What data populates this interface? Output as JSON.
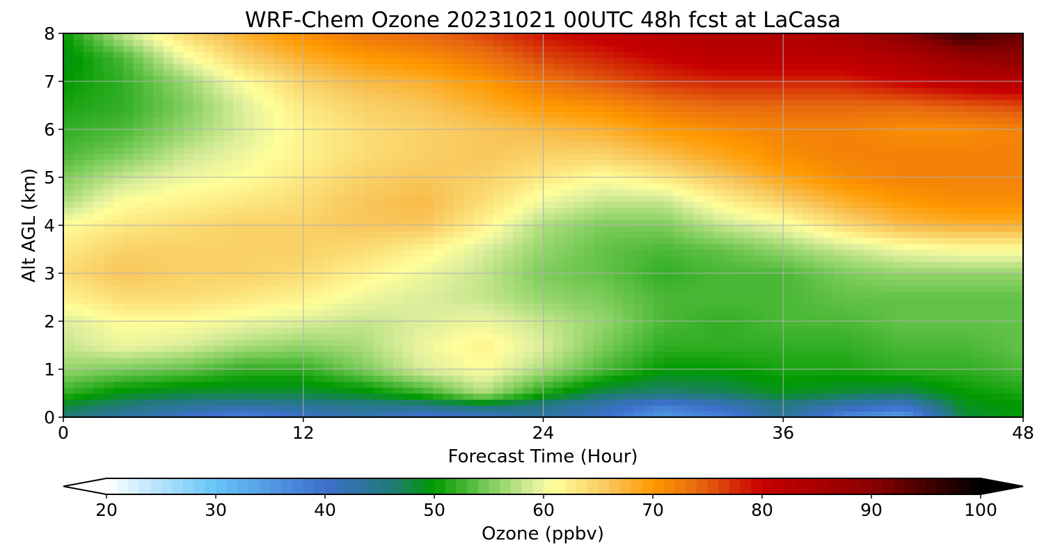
{
  "chart_data": {
    "type": "heatmap",
    "title": "WRF-Chem Ozone  20231021 00UTC 48h fcst at LaCasa",
    "xlabel": "Forecast Time (Hour)",
    "ylabel": "Alt AGL (km)",
    "xlim": [
      0,
      48
    ],
    "ylim": [
      0,
      8
    ],
    "xticks": [
      "0",
      "12",
      "24",
      "36",
      "48"
    ],
    "yticks": [
      "0",
      "1",
      "2",
      "3",
      "4",
      "5",
      "6",
      "7",
      "8"
    ],
    "grid": true,
    "x": [
      0,
      3,
      6,
      9,
      12,
      15,
      18,
      21,
      24,
      27,
      30,
      33,
      36,
      39,
      42,
      45,
      48
    ],
    "y": [
      0,
      0.25,
      0.5,
      1,
      1.5,
      2,
      2.5,
      3,
      3.5,
      4,
      4.5,
      5,
      5.5,
      6,
      6.5,
      7,
      7.5,
      8
    ],
    "z": [
      [
        46,
        43,
        40,
        37,
        40,
        42,
        39,
        40,
        43,
        40,
        35,
        38,
        44,
        37,
        34,
        48,
        50
      ],
      [
        48,
        46,
        44,
        43,
        44,
        45,
        45,
        47,
        45,
        42,
        38,
        41,
        45,
        42,
        40,
        49,
        50
      ],
      [
        52,
        49,
        48,
        48,
        48,
        49,
        52,
        57,
        51,
        47,
        46,
        47,
        49,
        48,
        47,
        50,
        51
      ],
      [
        56,
        55,
        54,
        52,
        52,
        55,
        59,
        61,
        57,
        53,
        50,
        50,
        51,
        51,
        52,
        52,
        53
      ],
      [
        58,
        60,
        59,
        57,
        56,
        57,
        60,
        62,
        59,
        55,
        52,
        52,
        52,
        52,
        53,
        53,
        54
      ],
      [
        59,
        61,
        61,
        60,
        59,
        58,
        59,
        60,
        58,
        56,
        53,
        52,
        53,
        53,
        54,
        54,
        54
      ],
      [
        62,
        64,
        64,
        63,
        62,
        60,
        59,
        58,
        56,
        55,
        53,
        53,
        53,
        54,
        54,
        54,
        54
      ],
      [
        64,
        66,
        65,
        65,
        64,
        62,
        60,
        58,
        55,
        54,
        52,
        53,
        53,
        55,
        56,
        56,
        56
      ],
      [
        63,
        65,
        65,
        65,
        65,
        64,
        62,
        59,
        56,
        54,
        53,
        54,
        56,
        58,
        60,
        61,
        61
      ],
      [
        61,
        63,
        64,
        65,
        65,
        66,
        66,
        62,
        57,
        55,
        55,
        58,
        60,
        64,
        67,
        68,
        68
      ],
      [
        57,
        61,
        62,
        63,
        64,
        66,
        67,
        64,
        60,
        58,
        58,
        62,
        65,
        68,
        70,
        71,
        71
      ],
      [
        55,
        58,
        60,
        61,
        63,
        65,
        66,
        65,
        63,
        61,
        63,
        66,
        69,
        71,
        72,
        72,
        72
      ],
      [
        53,
        55,
        58,
        60,
        62,
        64,
        65,
        66,
        65,
        65,
        67,
        69,
        71,
        72,
        72,
        72,
        72
      ],
      [
        52,
        53,
        56,
        59,
        62,
        64,
        65,
        66,
        67,
        68,
        70,
        71,
        72,
        72,
        71,
        71,
        72
      ],
      [
        51,
        52,
        55,
        59,
        63,
        65,
        66,
        68,
        70,
        71,
        73,
        74,
        74,
        74,
        74,
        75,
        76
      ],
      [
        50,
        52,
        56,
        61,
        65,
        67,
        68,
        70,
        73,
        75,
        77,
        78,
        78,
        78,
        80,
        82,
        83
      ],
      [
        49,
        53,
        60,
        65,
        68,
        70,
        71,
        73,
        76,
        78,
        80,
        82,
        82,
        82,
        84,
        88,
        90
      ],
      [
        50,
        58,
        64,
        68,
        71,
        73,
        74,
        76,
        79,
        81,
        83,
        84,
        84,
        85,
        90,
        96,
        92
      ]
    ],
    "colorbar": {
      "label": "Ozone  (ppbv)",
      "min": 20,
      "max": 100,
      "ticks": [
        "20",
        "30",
        "40",
        "50",
        "60",
        "70",
        "80",
        "90",
        "100"
      ],
      "extend": "both",
      "under_color": "#ffffff",
      "over_color": "#000000",
      "colors": [
        {
          "v": 20,
          "c": "#ffffff"
        },
        {
          "v": 30,
          "c": "#66c4f7"
        },
        {
          "v": 40,
          "c": "#3d6fcc"
        },
        {
          "v": 46,
          "c": "#217a7a"
        },
        {
          "v": 50,
          "c": "#009a00"
        },
        {
          "v": 55,
          "c": "#7ccc5a"
        },
        {
          "v": 59,
          "c": "#dcee9c"
        },
        {
          "v": 61,
          "c": "#fffe9a"
        },
        {
          "v": 66,
          "c": "#f8c65a"
        },
        {
          "v": 70,
          "c": "#ff9900"
        },
        {
          "v": 74,
          "c": "#e86a10"
        },
        {
          "v": 80,
          "c": "#c70000"
        },
        {
          "v": 90,
          "c": "#8c0000"
        },
        {
          "v": 100,
          "c": "#000000"
        }
      ]
    }
  }
}
